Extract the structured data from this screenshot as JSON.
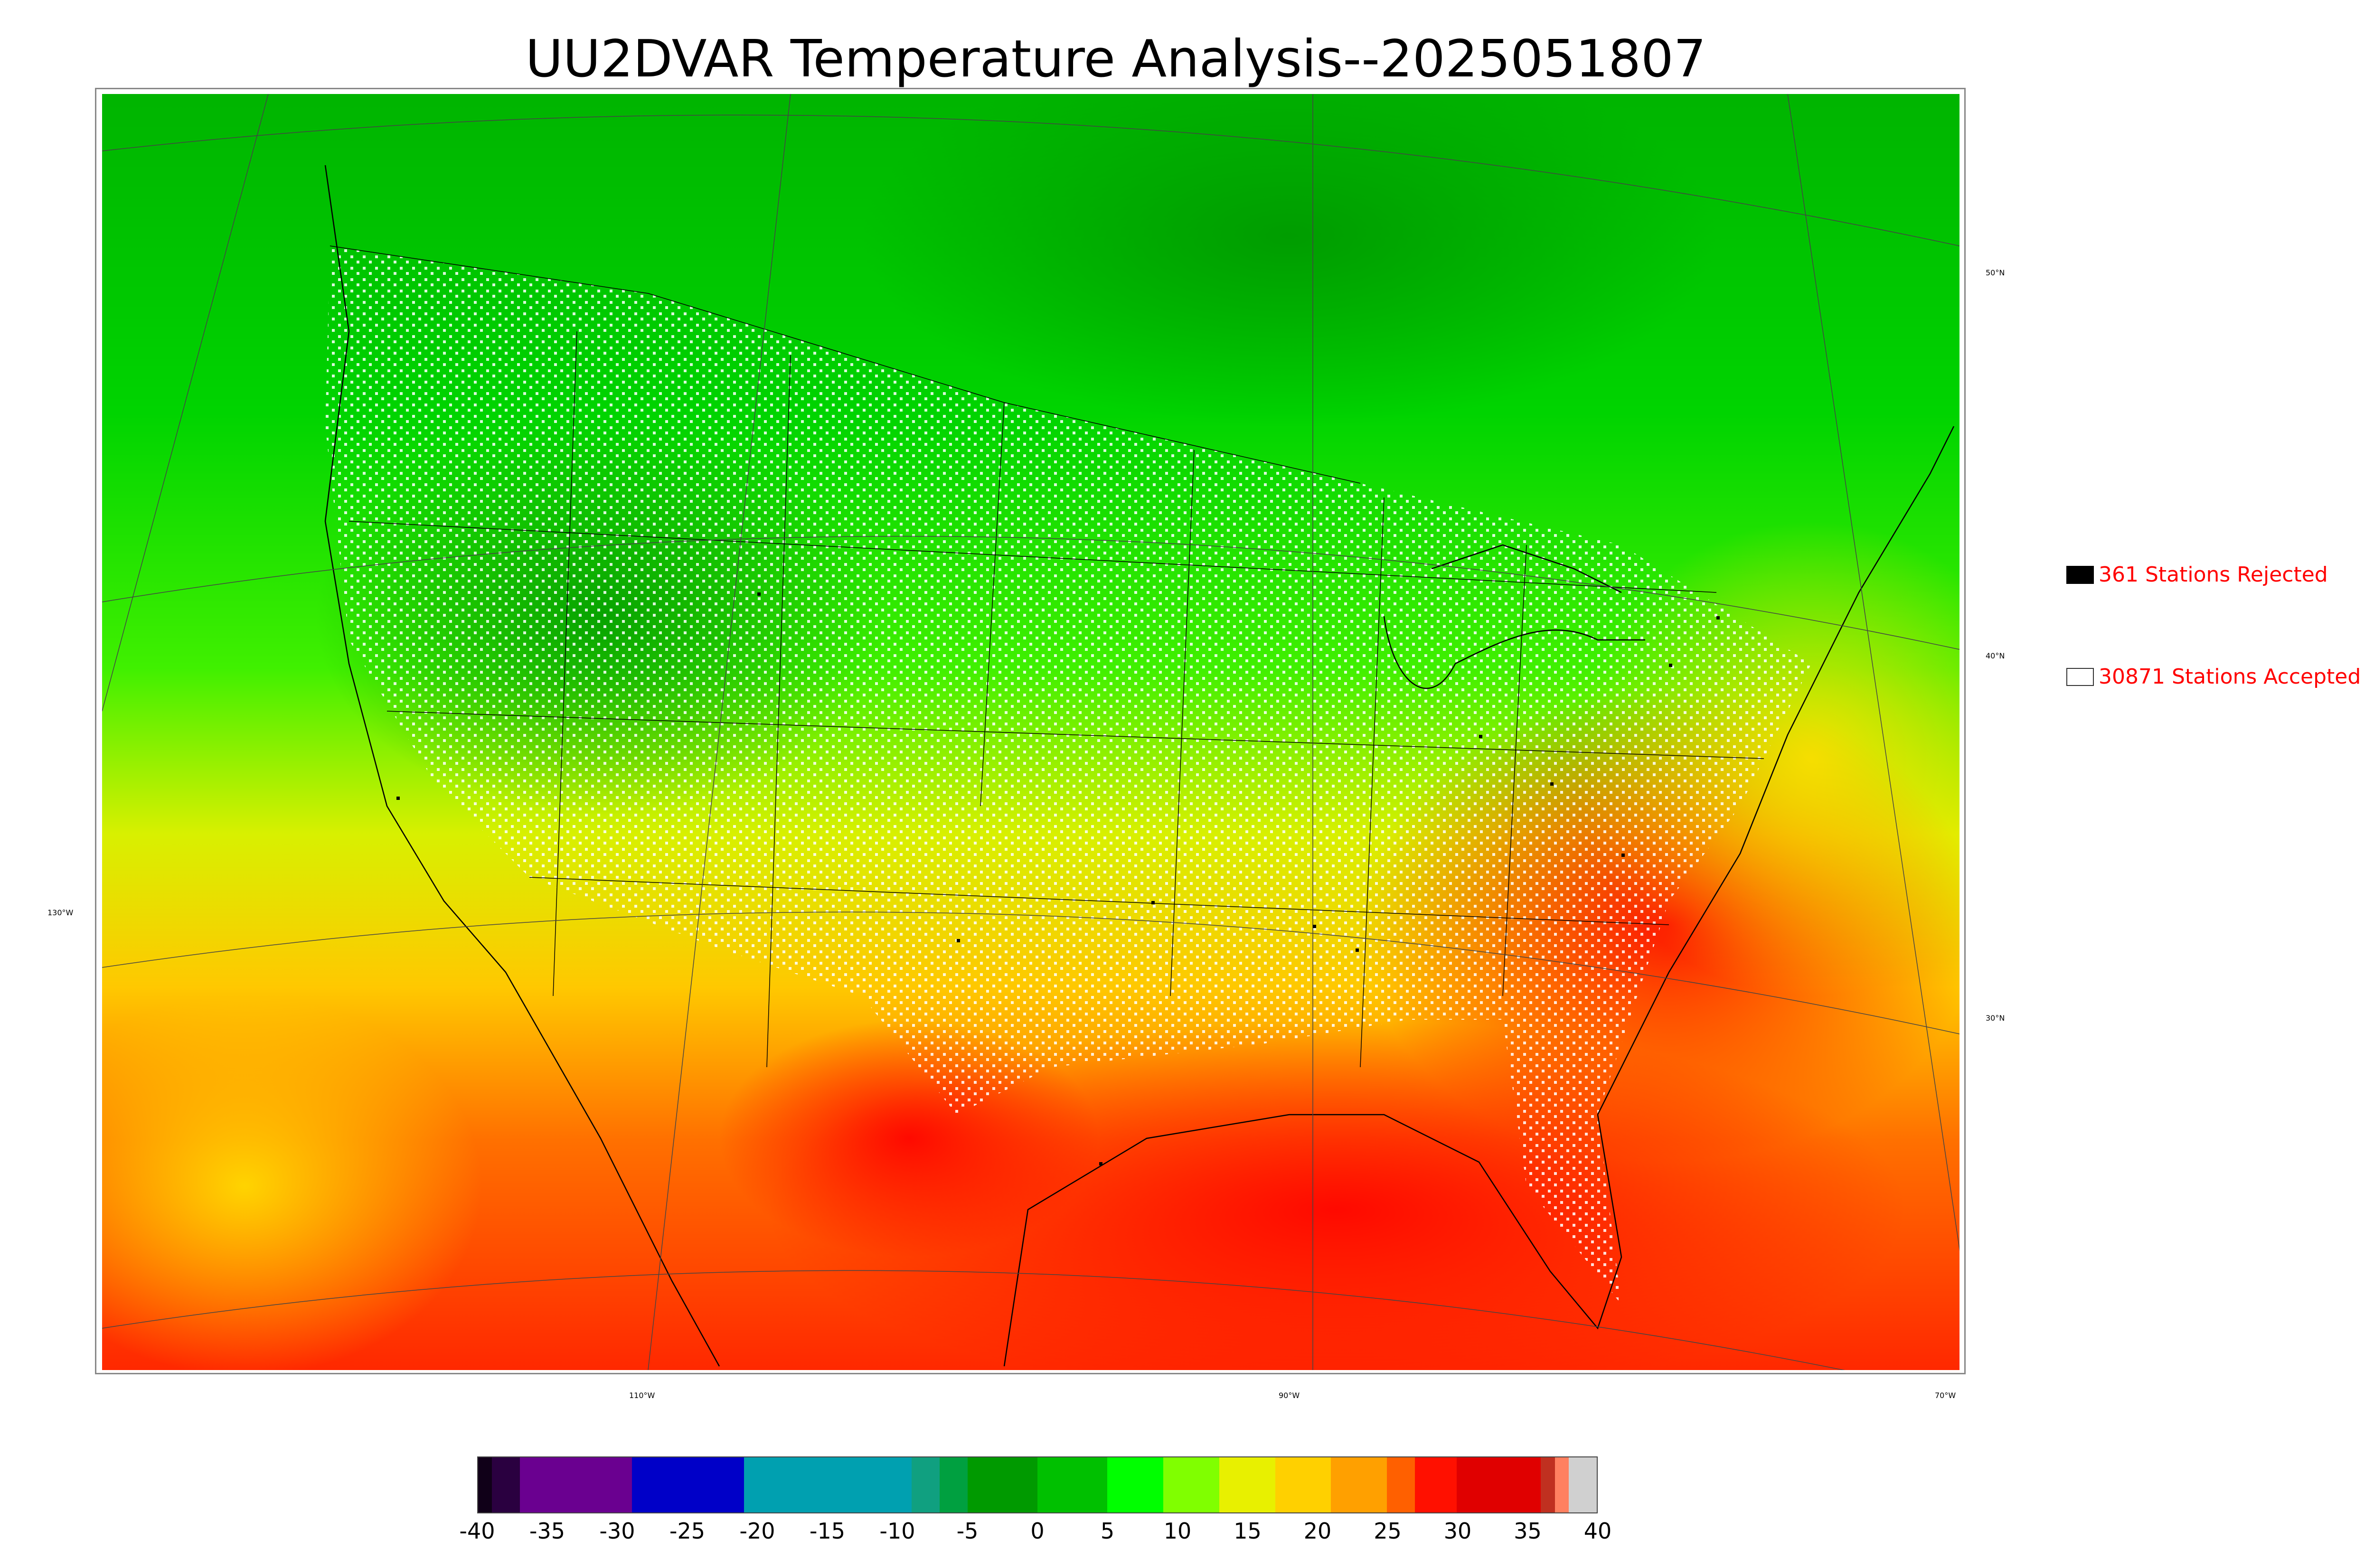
{
  "title": "UU2DVAR Temperature Analysis--2025051807",
  "legend": {
    "rejected": {
      "count": 361,
      "label": "361 Stations Rejected",
      "color": "#000000"
    },
    "accepted": {
      "count": 30871,
      "label": "30871 Stations Accepted",
      "color": "#ffffff"
    }
  },
  "graticule": {
    "latitudes": [
      "50°N",
      "40°N",
      "30°N"
    ],
    "longitudes": [
      "130°W",
      "110°W",
      "90°W",
      "70°W"
    ]
  },
  "colorbar": {
    "ticks": [
      "-40",
      "-35",
      "-30",
      "-25",
      "-20",
      "-15",
      "-10",
      "-5",
      "0",
      "5",
      "10",
      "15",
      "20",
      "25",
      "30",
      "35",
      "40"
    ],
    "range": [
      -40,
      40
    ],
    "segments": [
      {
        "from": -40,
        "to": -39,
        "color": "#100018"
      },
      {
        "from": -39,
        "to": -37,
        "color": "#2a0040"
      },
      {
        "from": -37,
        "to": -29,
        "color": "#6a0090"
      },
      {
        "from": -29,
        "to": -21,
        "color": "#0000c8"
      },
      {
        "from": -21,
        "to": -9,
        "color": "#00a0b0"
      },
      {
        "from": -9,
        "to": -7,
        "color": "#10a080"
      },
      {
        "from": -7,
        "to": -5,
        "color": "#00a040"
      },
      {
        "from": -5,
        "to": 0,
        "color": "#009a00"
      },
      {
        "from": 0,
        "to": 5,
        "color": "#00c000"
      },
      {
        "from": 5,
        "to": 9,
        "color": "#00ff00"
      },
      {
        "from": 9,
        "to": 13,
        "color": "#80ff00"
      },
      {
        "from": 13,
        "to": 17,
        "color": "#e8f000"
      },
      {
        "from": 17,
        "to": 21,
        "color": "#ffd000"
      },
      {
        "from": 21,
        "to": 25,
        "color": "#ffa000"
      },
      {
        "from": 25,
        "to": 27,
        "color": "#ff6000"
      },
      {
        "from": 27,
        "to": 30,
        "color": "#ff1000"
      },
      {
        "from": 30,
        "to": 36,
        "color": "#e00000"
      },
      {
        "from": 36,
        "to": 37,
        "color": "#c03020"
      },
      {
        "from": 37,
        "to": 38,
        "color": "#ff8060"
      },
      {
        "from": 38,
        "to": 40,
        "color": "#d0d0d0"
      }
    ]
  }
}
